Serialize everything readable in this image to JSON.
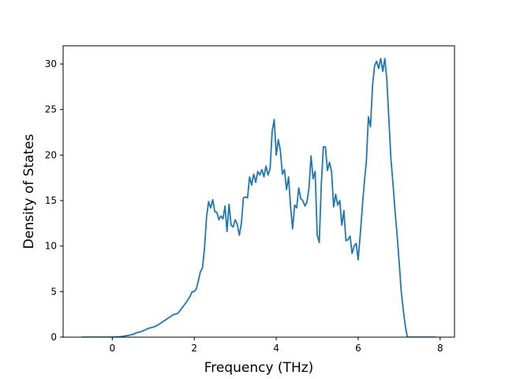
{
  "chart_data": {
    "type": "line",
    "title": "",
    "xlabel": "Frequency (THz)",
    "ylabel": "Density of States",
    "xlim": [
      -1.2,
      8.35
    ],
    "ylim": [
      0,
      32
    ],
    "x_ticks": [
      0,
      2,
      4,
      6,
      8
    ],
    "y_ticks": [
      0,
      5,
      10,
      15,
      20,
      25,
      30
    ],
    "x_tick_labels": [
      "0",
      "2",
      "4",
      "6",
      "8"
    ],
    "y_tick_labels": [
      "0",
      "5",
      "10",
      "15",
      "20",
      "25",
      "30"
    ],
    "grid": false,
    "legend": "none",
    "series": [
      {
        "color": "#1f77b4",
        "x": [
          -0.75,
          -0.4,
          0.0,
          0.2,
          0.4,
          0.5,
          0.6,
          0.7,
          0.8,
          0.9,
          1.0,
          1.1,
          1.2,
          1.3,
          1.4,
          1.5,
          1.6,
          1.7,
          1.8,
          1.9,
          1.95,
          2.0,
          2.05,
          2.1,
          2.15,
          2.2,
          2.25,
          2.3,
          2.35,
          2.4,
          2.45,
          2.5,
          2.55,
          2.6,
          2.65,
          2.7,
          2.75,
          2.8,
          2.85,
          2.9,
          2.95,
          3.0,
          3.05,
          3.1,
          3.15,
          3.2,
          3.25,
          3.3,
          3.35,
          3.4,
          3.45,
          3.5,
          3.55,
          3.6,
          3.65,
          3.7,
          3.75,
          3.8,
          3.85,
          3.9,
          3.95,
          4.0,
          4.05,
          4.1,
          4.15,
          4.2,
          4.25,
          4.3,
          4.35,
          4.4,
          4.45,
          4.5,
          4.55,
          4.6,
          4.65,
          4.7,
          4.75,
          4.8,
          4.85,
          4.9,
          4.95,
          5.0,
          5.05,
          5.1,
          5.15,
          5.2,
          5.25,
          5.3,
          5.35,
          5.4,
          5.45,
          5.5,
          5.55,
          5.6,
          5.65,
          5.7,
          5.75,
          5.8,
          5.85,
          5.9,
          5.95,
          6.0,
          6.05,
          6.1,
          6.15,
          6.2,
          6.25,
          6.3,
          6.35,
          6.4,
          6.45,
          6.5,
          6.55,
          6.6,
          6.65,
          6.7,
          6.75,
          6.8,
          6.85,
          6.9,
          6.95,
          7.0,
          7.05,
          7.1,
          7.15,
          7.2,
          7.5,
          7.9
        ],
        "y": [
          0,
          0,
          0,
          0.05,
          0.2,
          0.3,
          0.5,
          0.6,
          0.8,
          1.0,
          1.1,
          1.3,
          1.6,
          1.9,
          2.2,
          2.5,
          2.6,
          3.2,
          3.8,
          4.5,
          5.0,
          5.0,
          5.3,
          6.2,
          7.2,
          7.6,
          9.8,
          13.2,
          14.9,
          14.2,
          15.1,
          13.8,
          13.7,
          12.9,
          13.3,
          13.0,
          14.4,
          11.6,
          14.6,
          12.3,
          12.1,
          12.9,
          12.4,
          11.2,
          12.5,
          15.3,
          15.4,
          15.3,
          17.6,
          16.7,
          17.9,
          17.0,
          18.2,
          17.8,
          18.4,
          17.6,
          18.8,
          17.8,
          18.5,
          22.6,
          23.9,
          20.0,
          21.7,
          20.5,
          17.9,
          18.4,
          16.2,
          17.6,
          14.3,
          11.9,
          14.5,
          14.2,
          16.4,
          15.2,
          15.0,
          14.4,
          14.8,
          16.4,
          19.9,
          17.4,
          18.2,
          11.2,
          10.4,
          16.8,
          20.9,
          20.9,
          18.3,
          19.2,
          18.2,
          14.3,
          15.7,
          14.5,
          15.0,
          12.3,
          13.9,
          10.6,
          10.7,
          11.1,
          9.2,
          10.0,
          10.3,
          8.5,
          11.2,
          14.2,
          17.0,
          19.3,
          24.2,
          23.1,
          27.6,
          29.8,
          30.3,
          29.5,
          30.6,
          29.2,
          30.6,
          28.2,
          23.8,
          19.5,
          16.8,
          13.8,
          11.2,
          8.2,
          5.0,
          3.0,
          1.2,
          0,
          0,
          0
        ]
      }
    ]
  }
}
